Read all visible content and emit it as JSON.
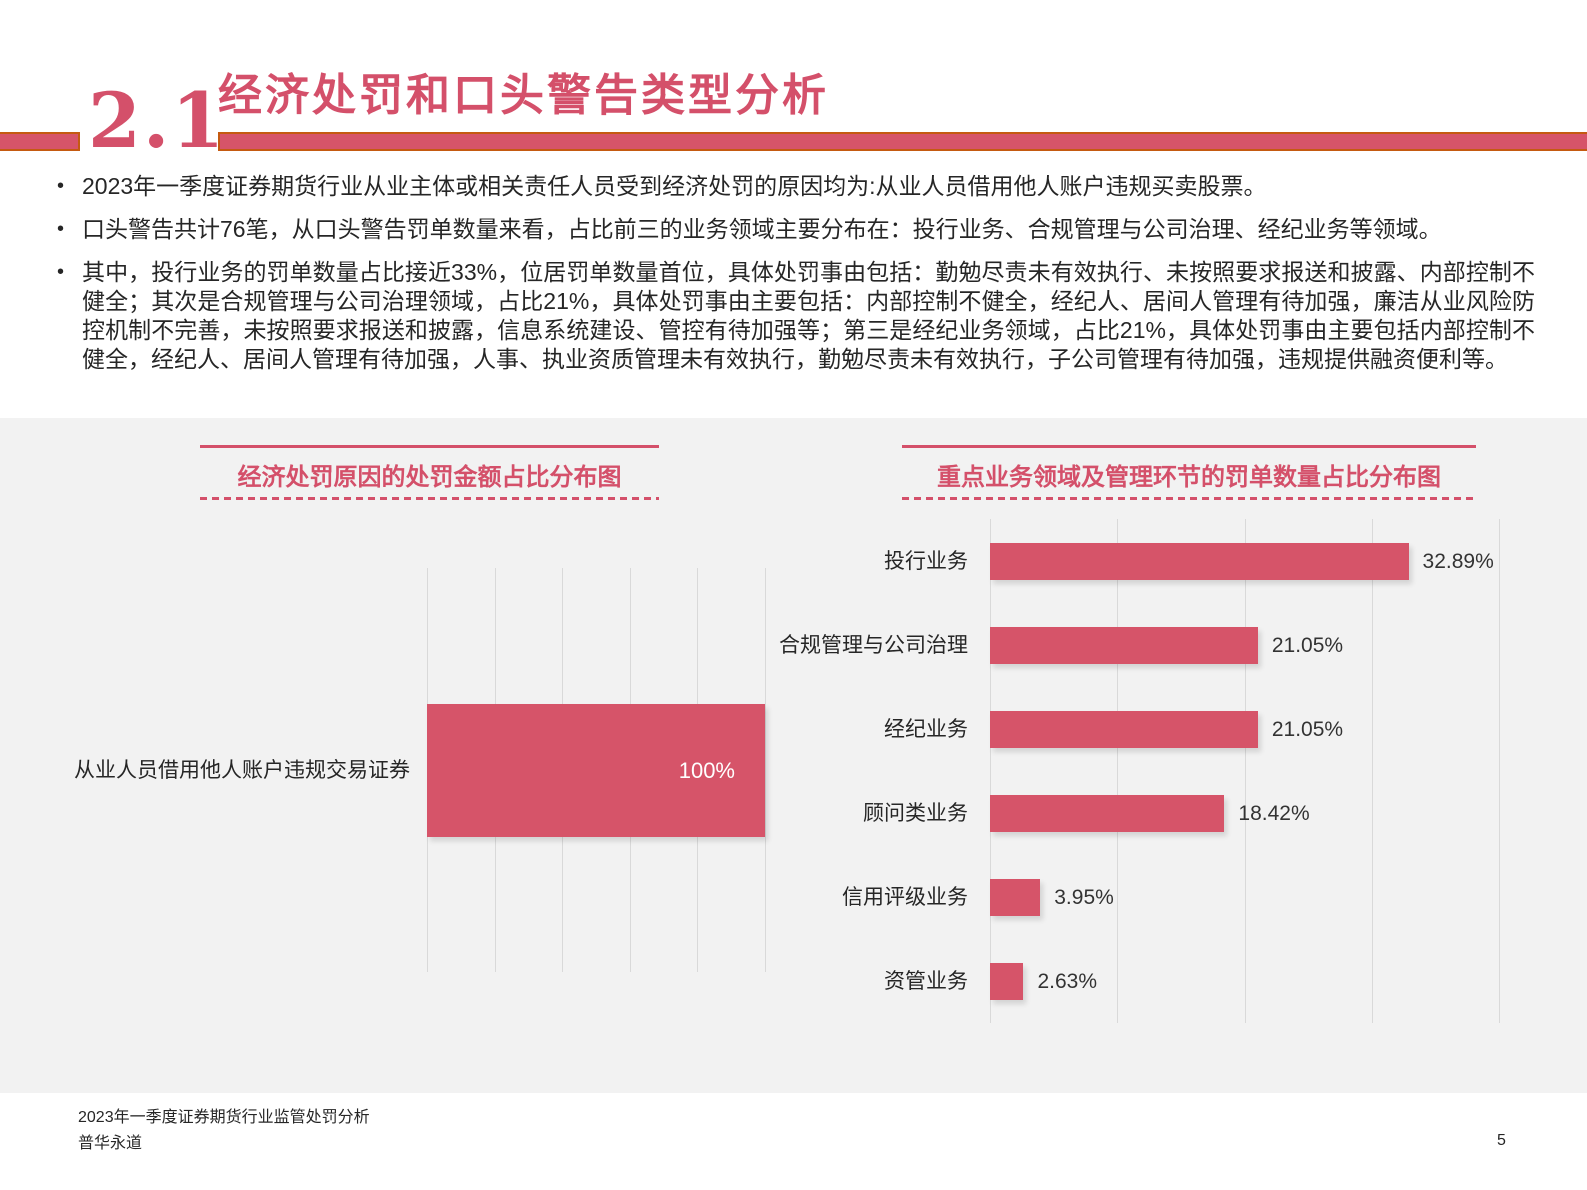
{
  "header": {
    "section_number": "2.1",
    "title": "经济处罚和口头警告类型分析"
  },
  "bullet_marker": "•",
  "bullets": [
    "2023年一季度证券期货行业从业主体或相关责任人员受到经济处罚的原因均为:从业人员借用他人账户违规买卖股票。",
    "口头警告共计76笔，从口头警告罚单数量来看，占比前三的业务领域主要分布在：投行业务、合规管理与公司治理、经纪业务等领域。",
    "其中，投行业务的罚单数量占比接近33%，位居罚单数量首位，具体处罚事由包括：勤勉尽责未有效执行、未按照要求报送和披露、内部控制不健全；其次是合规管理与公司治理领域，占比21%，具体处罚事由主要包括：内部控制不健全，经纪人、居间人管理有待加强，廉洁从业风险防控机制不完善，未按照要求报送和披露，信息系统建设、管控有待加强等；第三是经纪业务领域，占比21%，具体处罚事由主要包括内部控制不健全，经纪人、居间人管理有待加强，人事、执业资质管理未有效执行，勤勉尽责未有效执行，子公司管理有待加强，违规提供融资便利等。"
  ],
  "chart_data": [
    {
      "type": "bar",
      "orientation": "horizontal",
      "title": "经济处罚原因的处罚金额占比分布图",
      "categories": [
        "从业人员借用他人账户违规交易证券"
      ],
      "values": [
        100
      ],
      "value_labels": [
        "100%"
      ],
      "xlim": [
        0,
        100
      ],
      "gridline_step": 20,
      "grid": true,
      "legend": "none",
      "bar_color": "#d65469"
    },
    {
      "type": "bar",
      "orientation": "horizontal",
      "title": "重点业务领域及管理环节的罚单数量占比分布图",
      "categories": [
        "投行业务",
        "合规管理与公司治理",
        "经纪业务",
        "顾问类业务",
        "信用评级业务",
        "资管业务"
      ],
      "values": [
        32.89,
        21.05,
        21.05,
        18.42,
        3.95,
        2.63
      ],
      "value_labels": [
        "32.89%",
        "21.05%",
        "21.05%",
        "18.42%",
        "3.95%",
        "2.63%"
      ],
      "xlim": [
        0,
        40
      ],
      "gridline_step": 10,
      "grid": true,
      "legend": "none",
      "bar_color": "#d65469"
    }
  ],
  "footer": {
    "report_title": "2023年一季度证券期货行业监管处罚分析",
    "company": "普华永道",
    "page_number": "5"
  },
  "colors": {
    "accent_text": "#d4506a",
    "bar_fill": "#d65469",
    "header_bar_border": "#c55a11",
    "panel_background": "#f2f2f2",
    "gridline": "#d9d9d9",
    "body_text": "#262626"
  }
}
